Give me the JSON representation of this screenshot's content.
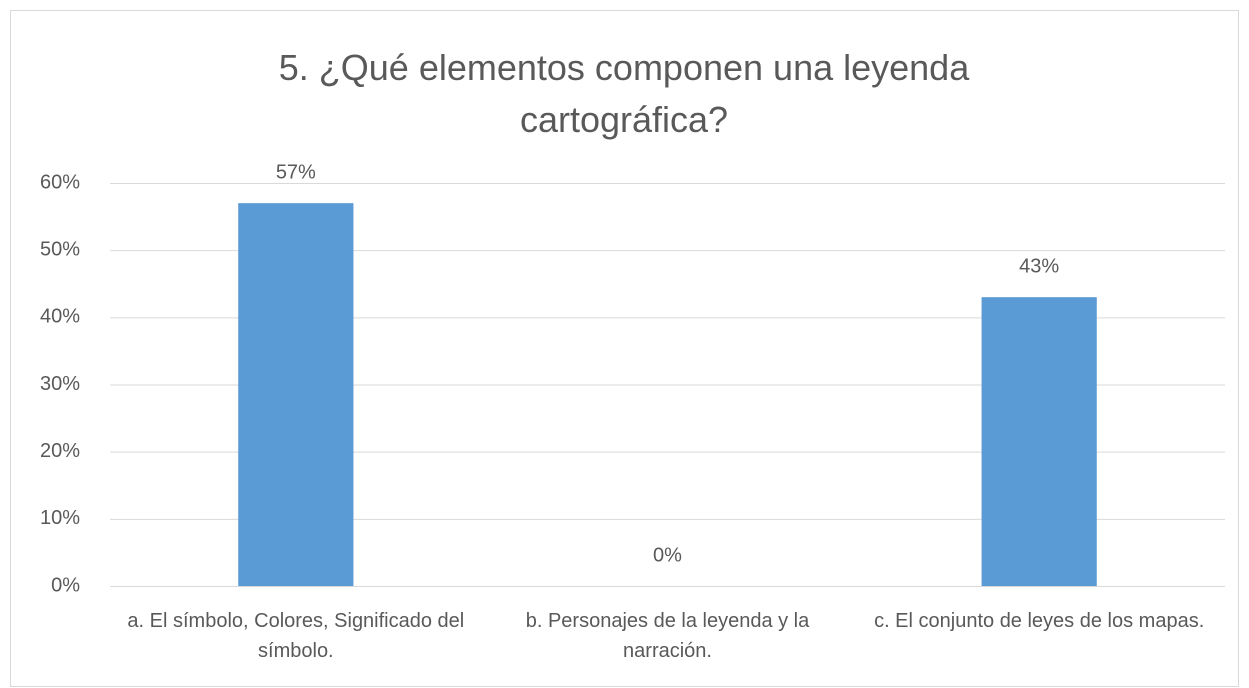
{
  "chart_data": {
    "type": "bar",
    "title": "5. ¿Qué elementos componen una leyenda cartográfica?",
    "categories": [
      "a. El símbolo, Colores, Significado del símbolo.",
      "b. Personajes de la leyenda y la narración.",
      "c. El conjunto de leyes de los mapas."
    ],
    "values": [
      57,
      0,
      43
    ],
    "value_labels": [
      "57%",
      "0%",
      "43%"
    ],
    "color": "#5b9bd5",
    "ylim": [
      0,
      60
    ],
    "yticks": [
      {
        "value": 0,
        "label": "0%"
      },
      {
        "value": 10,
        "label": "10%"
      },
      {
        "value": 20,
        "label": "20%"
      },
      {
        "value": 30,
        "label": "30%"
      },
      {
        "value": 40,
        "label": "40%"
      },
      {
        "value": 50,
        "label": "50%"
      },
      {
        "value": 60,
        "label": "60%"
      }
    ],
    "grid": true
  }
}
